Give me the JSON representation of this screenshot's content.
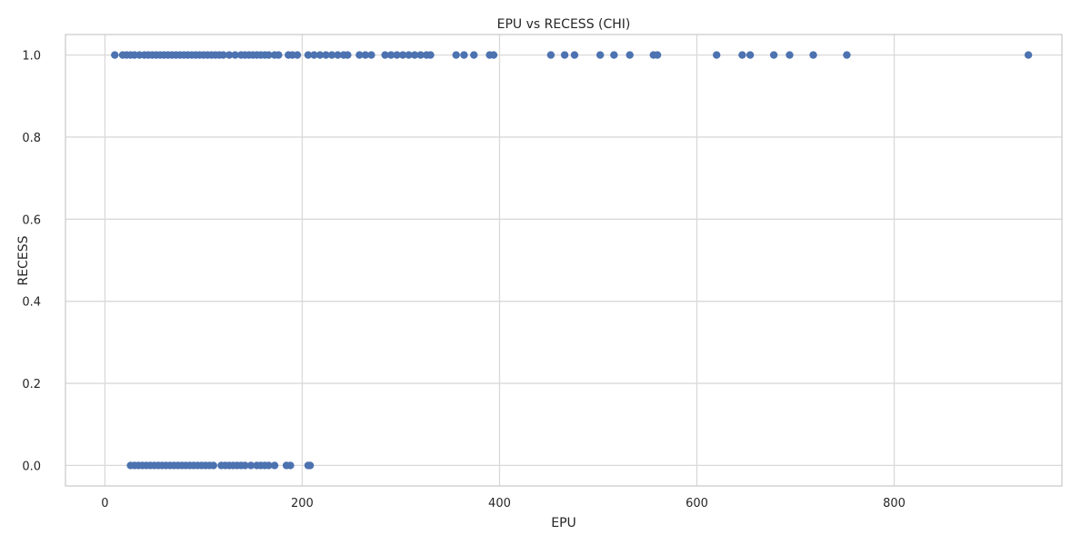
{
  "chart_data": {
    "type": "scatter",
    "title": "EPU vs RECESS (CHI)",
    "xlabel": "EPU",
    "ylabel": "RECESS",
    "xlim": [
      -40,
      970
    ],
    "ylim": [
      -0.05,
      1.05
    ],
    "x_ticks": [
      0,
      200,
      400,
      600,
      800
    ],
    "x_tick_labels": [
      "0",
      "200",
      "400",
      "600",
      "800"
    ],
    "y_ticks": [
      0.0,
      0.2,
      0.4,
      0.6,
      0.8,
      1.0
    ],
    "y_tick_labels": [
      "0.0",
      "0.2",
      "0.4",
      "0.6",
      "0.8",
      "1.0"
    ],
    "grid": true,
    "colors": {
      "marker": "#4C72B0",
      "grid": "#d9d9d9",
      "spine": "#cccccc"
    },
    "series": [
      {
        "points": [
          [
            10,
            1
          ],
          [
            18,
            1
          ],
          [
            22,
            1
          ],
          [
            26,
            1
          ],
          [
            30,
            1
          ],
          [
            35,
            1
          ],
          [
            40,
            1
          ],
          [
            44,
            1
          ],
          [
            48,
            1
          ],
          [
            52,
            1
          ],
          [
            56,
            1
          ],
          [
            60,
            1
          ],
          [
            64,
            1
          ],
          [
            68,
            1
          ],
          [
            72,
            1
          ],
          [
            76,
            1
          ],
          [
            80,
            1
          ],
          [
            84,
            1
          ],
          [
            88,
            1
          ],
          [
            92,
            1
          ],
          [
            96,
            1
          ],
          [
            100,
            1
          ],
          [
            104,
            1
          ],
          [
            108,
            1
          ],
          [
            112,
            1
          ],
          [
            116,
            1
          ],
          [
            120,
            1
          ],
          [
            126,
            1
          ],
          [
            132,
            1
          ],
          [
            138,
            1
          ],
          [
            142,
            1
          ],
          [
            146,
            1
          ],
          [
            150,
            1
          ],
          [
            154,
            1
          ],
          [
            158,
            1
          ],
          [
            162,
            1
          ],
          [
            166,
            1
          ],
          [
            172,
            1
          ],
          [
            176,
            1
          ],
          [
            186,
            1
          ],
          [
            190,
            1
          ],
          [
            195,
            1
          ],
          [
            206,
            1
          ],
          [
            212,
            1
          ],
          [
            218,
            1
          ],
          [
            224,
            1
          ],
          [
            230,
            1
          ],
          [
            236,
            1
          ],
          [
            242,
            1
          ],
          [
            246,
            1
          ],
          [
            258,
            1
          ],
          [
            264,
            1
          ],
          [
            270,
            1
          ],
          [
            284,
            1
          ],
          [
            290,
            1
          ],
          [
            296,
            1
          ],
          [
            302,
            1
          ],
          [
            308,
            1
          ],
          [
            314,
            1
          ],
          [
            320,
            1
          ],
          [
            326,
            1
          ],
          [
            330,
            1
          ],
          [
            356,
            1
          ],
          [
            364,
            1
          ],
          [
            374,
            1
          ],
          [
            390,
            1
          ],
          [
            394,
            1
          ],
          [
            452,
            1
          ],
          [
            466,
            1
          ],
          [
            476,
            1
          ],
          [
            502,
            1
          ],
          [
            516,
            1
          ],
          [
            532,
            1
          ],
          [
            556,
            1
          ],
          [
            560,
            1
          ],
          [
            620,
            1
          ],
          [
            646,
            1
          ],
          [
            654,
            1
          ],
          [
            678,
            1
          ],
          [
            694,
            1
          ],
          [
            718,
            1
          ],
          [
            752,
            1
          ],
          [
            936,
            1
          ],
          [
            26,
            0
          ],
          [
            30,
            0
          ],
          [
            34,
            0
          ],
          [
            38,
            0
          ],
          [
            42,
            0
          ],
          [
            46,
            0
          ],
          [
            50,
            0
          ],
          [
            54,
            0
          ],
          [
            58,
            0
          ],
          [
            62,
            0
          ],
          [
            66,
            0
          ],
          [
            70,
            0
          ],
          [
            74,
            0
          ],
          [
            78,
            0
          ],
          [
            82,
            0
          ],
          [
            86,
            0
          ],
          [
            90,
            0
          ],
          [
            94,
            0
          ],
          [
            98,
            0
          ],
          [
            102,
            0
          ],
          [
            106,
            0
          ],
          [
            110,
            0
          ],
          [
            118,
            0
          ],
          [
            122,
            0
          ],
          [
            126,
            0
          ],
          [
            130,
            0
          ],
          [
            134,
            0
          ],
          [
            138,
            0
          ],
          [
            142,
            0
          ],
          [
            148,
            0
          ],
          [
            154,
            0
          ],
          [
            158,
            0
          ],
          [
            162,
            0
          ],
          [
            166,
            0
          ],
          [
            172,
            0
          ],
          [
            184,
            0
          ],
          [
            188,
            0
          ],
          [
            206,
            0
          ],
          [
            208,
            0
          ]
        ]
      }
    ]
  }
}
